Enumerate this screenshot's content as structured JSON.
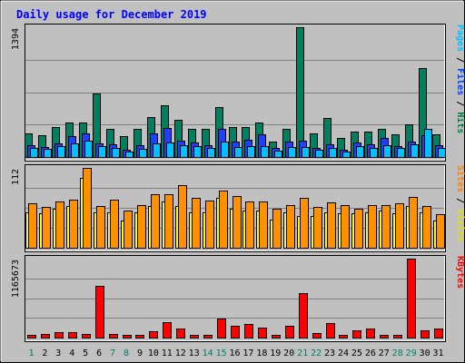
{
  "chart_data": {
    "type": "bar",
    "title": "Daily usage for December 2019",
    "categories": [
      "1",
      "2",
      "3",
      "4",
      "5",
      "6",
      "7",
      "8",
      "9",
      "10",
      "11",
      "12",
      "13",
      "14",
      "15",
      "16",
      "17",
      "18",
      "19",
      "20",
      "21",
      "22",
      "23",
      "24",
      "25",
      "26",
      "27",
      "28",
      "29",
      "30",
      "31"
    ],
    "weekend_days": [
      1,
      7,
      8,
      14,
      15,
      21,
      22,
      28,
      29
    ],
    "panels": [
      {
        "name": "hits-files-pages",
        "axis_max_label": "1394",
        "ymax": 1394,
        "legend": [
          {
            "text": "Pages",
            "color": "#00c0ff"
          },
          {
            "text": " / ",
            "color": "#000000"
          },
          {
            "text": "Files",
            "color": "#0040ff"
          },
          {
            "text": " / ",
            "color": "#000000"
          },
          {
            "text": "Hits",
            "color": "#008040"
          }
        ],
        "series": [
          {
            "name": "Hits",
            "color": "#008060",
            "values": [
              250,
              230,
              320,
              370,
              370,
              680,
              300,
              220,
              300,
              430,
              560,
              400,
              300,
              300,
              540,
              320,
              320,
              370,
              170,
              300,
              1394,
              250,
              420,
              200,
              270,
              270,
              300,
              240,
              350,
              960,
              240
            ]
          },
          {
            "name": "Files",
            "color": "#2040ff",
            "values": [
              130,
              110,
              150,
              220,
              250,
              150,
              140,
              80,
              130,
              250,
              310,
              180,
              160,
              130,
              300,
              170,
              190,
              240,
              100,
              170,
              180,
              100,
              140,
              80,
              160,
              140,
              200,
              120,
              170,
              230,
              130
            ]
          },
          {
            "name": "Pages",
            "color": "#00c0ff",
            "values": [
              100,
              90,
              120,
              150,
              180,
              120,
              100,
              60,
              90,
              150,
              160,
              130,
              120,
              100,
              170,
              110,
              120,
              120,
              70,
              110,
              110,
              80,
              100,
              60,
              120,
              100,
              130,
              100,
              140,
              300,
              100
            ]
          }
        ]
      },
      {
        "name": "sites-visits",
        "axis_max_label": "112",
        "ymax": 112,
        "legend": [
          {
            "text": "Sites",
            "color": "#ff8000"
          },
          {
            "text": " / ",
            "color": "#000000"
          },
          {
            "text": "Visits",
            "color": "#e0e000"
          }
        ],
        "series": [
          {
            "name": "Visits",
            "color": "#ffff00",
            "values": [
              50,
              48,
              55,
              58,
              98,
              50,
              50,
              38,
              50,
              58,
              65,
              58,
              50,
              50,
              70,
              55,
              52,
              52,
              40,
              50,
              45,
              45,
              50,
              48,
              48,
              50,
              52,
              48,
              58,
              50,
              38
            ]
          },
          {
            "name": "Sites",
            "color": "#ff9000",
            "values": [
              62,
              57,
              65,
              68,
              112,
              58,
              68,
              52,
              60,
              75,
              75,
              88,
              70,
              66,
              80,
              72,
              65,
              65,
              55,
              60,
              70,
              57,
              64,
              60,
              55,
              60,
              60,
              62,
              71,
              58,
              47
            ]
          }
        ]
      },
      {
        "name": "kbytes",
        "axis_max_label": "1165673",
        "ymax": 1165673,
        "legend": [
          {
            "text": "KBytes",
            "color": "#ff0000"
          }
        ],
        "series": [
          {
            "name": "KBytes",
            "color": "#ff0000",
            "values": [
              35000,
              48000,
              85000,
              80000,
              52000,
              760000,
              55000,
              38000,
              40000,
              100000,
              225000,
              130000,
              42000,
              38000,
              280000,
              180000,
              195000,
              150000,
              35000,
              175000,
              660000,
              65000,
              210000,
              35000,
              112000,
              140000,
              38000,
              42000,
              1165673,
              105000,
              130000
            ]
          }
        ]
      }
    ]
  }
}
